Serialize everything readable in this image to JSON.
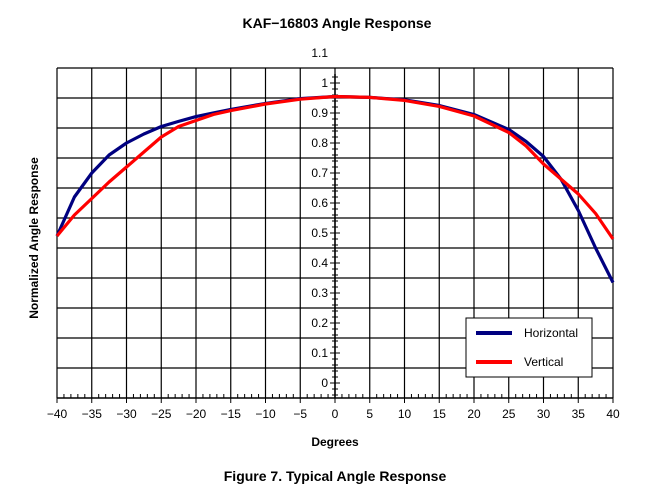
{
  "chart_data": {
    "type": "line",
    "title": "KAF−16803 Angle Response",
    "caption": "Figure 7. Typical Angle Response",
    "xlabel": "Degrees",
    "ylabel": "Normalized Angle Response",
    "xlim": [
      -40,
      40
    ],
    "ylim": [
      -0.05,
      1.05
    ],
    "xticks": [
      -40,
      -35,
      -30,
      -25,
      -20,
      -15,
      -10,
      -5,
      0,
      5,
      10,
      15,
      20,
      25,
      30,
      35,
      40
    ],
    "xtick_labels": [
      "−40",
      "−35",
      "−30",
      "−25",
      "−20",
      "−15",
      "−10",
      "−5",
      "0",
      "5",
      "10",
      "15",
      "20",
      "25",
      "30",
      "35",
      "40"
    ],
    "yticks": [
      0,
      0.1,
      0.2,
      0.3,
      0.4,
      0.5,
      0.6,
      0.7,
      0.8,
      0.9,
      1,
      1.1
    ],
    "ytick_labels": [
      "0",
      "0.1",
      "0.2",
      "0.3",
      "0.4",
      "0.5",
      "0.6",
      "0.7",
      "0.8",
      "0.9",
      "1",
      "1.1"
    ],
    "grid": true,
    "legend_position": "bottom-right",
    "x": [
      -40,
      -37.5,
      -35,
      -32.5,
      -30,
      -27.5,
      -25,
      -22.5,
      -20,
      -17.5,
      -15,
      -10,
      -5,
      0,
      5,
      10,
      15,
      20,
      25,
      27.5,
      30,
      32.5,
      35,
      37.5,
      40
    ],
    "series": [
      {
        "name": "Horizontal",
        "color": "#000080",
        "values": [
          0.49,
          0.62,
          0.7,
          0.76,
          0.8,
          0.83,
          0.855,
          0.872,
          0.888,
          0.9,
          0.912,
          0.932,
          0.948,
          0.955,
          0.952,
          0.944,
          0.925,
          0.895,
          0.845,
          0.805,
          0.755,
          0.68,
          0.575,
          0.45,
          0.335
        ]
      },
      {
        "name": "Vertical",
        "color": "#ff0000",
        "values": [
          0.49,
          0.56,
          0.615,
          0.67,
          0.72,
          0.77,
          0.82,
          0.855,
          0.875,
          0.895,
          0.908,
          0.93,
          0.946,
          0.955,
          0.952,
          0.942,
          0.922,
          0.89,
          0.835,
          0.79,
          0.73,
          0.68,
          0.63,
          0.565,
          0.48
        ]
      }
    ]
  }
}
